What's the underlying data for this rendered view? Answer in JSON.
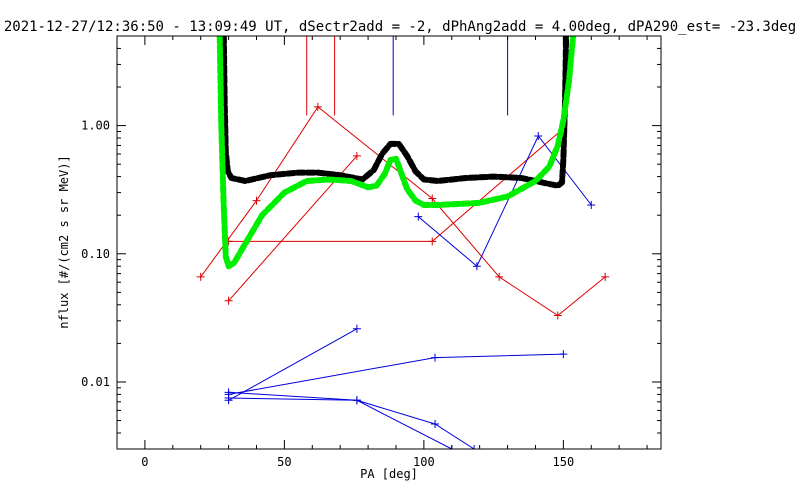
{
  "chart_data": {
    "type": "line",
    "title": "2021-12-27/12:36:50 - 13:09:49 UT, dSectr2add = -2, dPhAng2add = 4.00deg, dPA290_est= -23.3deg",
    "xlabel": "PA [deg]",
    "ylabel": "nflux [#/(cm2 s sr MeV)]",
    "xlim": [
      -10,
      185
    ],
    "ylim": [
      0.003,
      5.0
    ],
    "yscale": "log",
    "x_ticks": [
      0,
      50,
      100,
      150
    ],
    "x_tick_labels": [
      "0",
      "50",
      "100",
      "150"
    ],
    "y_ticks": [
      0.01,
      0.1,
      1.0
    ],
    "y_tick_labels": [
      "0.01",
      "0.10",
      "1.00"
    ],
    "grid": false,
    "colors": {
      "red": "#dd0000",
      "blue": "#0000dd",
      "black": "#000000",
      "green": "#00ee00"
    },
    "series": [
      {
        "color": "red",
        "style": "line-plus",
        "points": [
          [
            20,
            0.066
          ],
          [
            40,
            0.26
          ],
          [
            62,
            1.4
          ],
          [
            103,
            0.27
          ],
          [
            127,
            0.066
          ],
          [
            148,
            0.033
          ],
          [
            165,
            0.066
          ]
        ]
      },
      {
        "color": "red",
        "style": "line-plus",
        "points": [
          [
            30,
            0.043
          ],
          [
            76,
            0.58
          ]
        ]
      },
      {
        "color": "red",
        "style": "line-plus",
        "points": [
          [
            30,
            0.125
          ],
          [
            103,
            0.125
          ],
          [
            150,
            0.95
          ]
        ]
      },
      {
        "color": "red",
        "style": "spike",
        "points": [
          [
            58,
            5.0
          ],
          [
            58,
            1.2
          ]
        ]
      },
      {
        "color": "red",
        "style": "spike",
        "points": [
          [
            68,
            5.0
          ],
          [
            68,
            1.2
          ]
        ]
      },
      {
        "color": "blue",
        "style": "line-plus",
        "points": [
          [
            98,
            0.195
          ],
          [
            119,
            0.08
          ],
          [
            141,
            0.83
          ],
          [
            160,
            0.24
          ]
        ]
      },
      {
        "color": "blue",
        "style": "line-plus",
        "points": [
          [
            30,
            0.008
          ],
          [
            104,
            0.0155
          ],
          [
            150,
            0.0165
          ]
        ]
      },
      {
        "color": "blue",
        "style": "line-plus",
        "points": [
          [
            30,
            0.0072
          ],
          [
            76,
            0.026
          ]
        ]
      },
      {
        "color": "blue",
        "style": "line-plus",
        "points": [
          [
            30,
            0.0075
          ],
          [
            76,
            0.0072
          ],
          [
            104,
            0.0047
          ],
          [
            118,
            0.003
          ]
        ]
      },
      {
        "color": "blue",
        "style": "line-plus",
        "points": [
          [
            30,
            0.0083
          ],
          [
            76,
            0.0072
          ],
          [
            110,
            0.003
          ]
        ]
      },
      {
        "color": "blue",
        "style": "spike",
        "points": [
          [
            89,
            5.0
          ],
          [
            89,
            1.2
          ]
        ]
      },
      {
        "color": "blue",
        "style": "spike",
        "points": [
          [
            130,
            5.0
          ],
          [
            130,
            1.2
          ]
        ]
      },
      {
        "color": "black",
        "style": "dashed-thick",
        "points": [
          [
            28.3,
            5.0
          ],
          [
            28.6,
            1.5
          ],
          [
            29,
            0.62
          ],
          [
            29.7,
            0.44
          ],
          [
            31,
            0.39
          ],
          [
            36,
            0.37
          ],
          [
            45,
            0.41
          ],
          [
            55,
            0.43
          ],
          [
            62,
            0.43
          ],
          [
            70,
            0.41
          ],
          [
            78,
            0.38
          ],
          [
            82,
            0.45
          ],
          [
            85,
            0.6
          ],
          [
            88,
            0.72
          ],
          [
            91,
            0.72
          ],
          [
            94,
            0.58
          ],
          [
            97,
            0.44
          ],
          [
            100,
            0.38
          ],
          [
            105,
            0.37
          ],
          [
            115,
            0.39
          ],
          [
            125,
            0.4
          ],
          [
            135,
            0.39
          ],
          [
            145,
            0.35
          ],
          [
            148,
            0.34
          ],
          [
            149.5,
            0.36
          ],
          [
            150,
            0.55
          ],
          [
            150.6,
            1.5
          ],
          [
            151,
            5.0
          ]
        ]
      },
      {
        "color": "green",
        "style": "dashed-thick",
        "points": [
          [
            26.8,
            5.0
          ],
          [
            27.4,
            1.0
          ],
          [
            28.2,
            0.25
          ],
          [
            29,
            0.095
          ],
          [
            30,
            0.08
          ],
          [
            32,
            0.085
          ],
          [
            36,
            0.12
          ],
          [
            42,
            0.2
          ],
          [
            50,
            0.3
          ],
          [
            58,
            0.37
          ],
          [
            66,
            0.38
          ],
          [
            74,
            0.37
          ],
          [
            80,
            0.33
          ],
          [
            83,
            0.34
          ],
          [
            86,
            0.42
          ],
          [
            88,
            0.54
          ],
          [
            90,
            0.55
          ],
          [
            92,
            0.42
          ],
          [
            94,
            0.32
          ],
          [
            97,
            0.26
          ],
          [
            100,
            0.24
          ],
          [
            105,
            0.24
          ],
          [
            120,
            0.25
          ],
          [
            130,
            0.28
          ],
          [
            140,
            0.37
          ],
          [
            145,
            0.48
          ],
          [
            148,
            0.7
          ],
          [
            150,
            1.1
          ],
          [
            152,
            2.2
          ],
          [
            153.5,
            5.0
          ]
        ]
      }
    ]
  }
}
